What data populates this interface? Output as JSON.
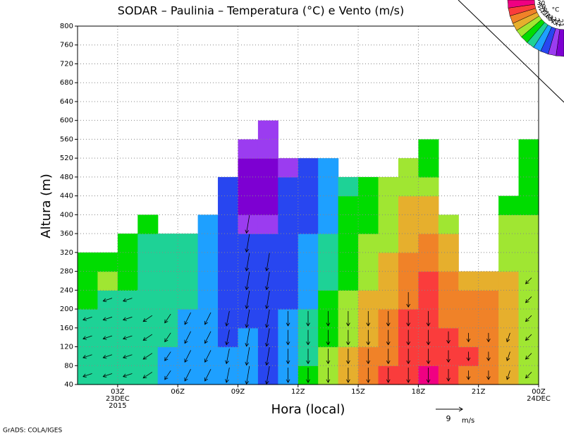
{
  "chart_data": {
    "type": "heatmap",
    "title": "SODAR – Paulinia – Temperatura (°C) e Vento (m/s)",
    "xlabel": "Hora (local)",
    "ylabel": "Altura (m)",
    "xlim": [
      1,
      24
    ],
    "ylim": [
      40,
      800
    ],
    "xticks": [
      {
        "value": 3,
        "label": "03Z 23DEC 2015"
      },
      {
        "value": 6,
        "label": "06Z"
      },
      {
        "value": 9,
        "label": "09Z"
      },
      {
        "value": 12,
        "label": "12Z"
      },
      {
        "value": 15,
        "label": "15Z"
      },
      {
        "value": 18,
        "label": "18Z"
      },
      {
        "value": 21,
        "label": "21Z"
      },
      {
        "value": 24,
        "label": "00Z 24DEC"
      }
    ],
    "yticks": [
      40,
      80,
      120,
      160,
      200,
      240,
      280,
      320,
      360,
      400,
      440,
      480,
      520,
      560,
      600,
      640,
      680,
      720,
      760,
      800
    ],
    "grid": true,
    "x": [
      1,
      2,
      3,
      4,
      5,
      6,
      7,
      8,
      9,
      10,
      11,
      12,
      13,
      14,
      15,
      16,
      17,
      18,
      19,
      20,
      21,
      22,
      23,
      24
    ],
    "y": [
      40,
      80,
      120,
      160,
      200,
      240,
      280,
      320,
      360,
      400,
      440,
      480,
      520,
      560,
      600
    ],
    "z": [
      [
        24.5,
        24.5,
        24.5,
        24.5,
        25.5,
        25.5,
        25.5,
        null,
        null,
        null,
        null,
        null,
        null,
        null
      ],
      [
        24.5,
        24.5,
        24.5,
        24.5,
        24.5,
        26.5,
        25.5,
        null,
        null,
        null,
        null,
        null,
        null,
        null
      ],
      [
        24.5,
        24.5,
        24.5,
        24.5,
        24.5,
        25.5,
        25.5,
        25.5,
        null,
        null,
        null,
        null,
        null,
        null
      ],
      [
        24.5,
        24.5,
        24.5,
        24.5,
        24.5,
        24.5,
        24.5,
        24.5,
        25.5,
        null,
        null,
        null,
        null,
        null
      ],
      [
        23.5,
        23.5,
        24.5,
        24.5,
        24.5,
        24.5,
        24.5,
        24.5,
        null,
        null,
        null,
        null,
        null,
        null
      ],
      [
        23.5,
        23.5,
        23.5,
        23.5,
        24.5,
        24.5,
        24.5,
        24.5,
        null,
        null,
        null,
        null,
        null,
        null
      ],
      [
        23.5,
        23.5,
        23.5,
        23.5,
        23.5,
        23.5,
        23.5,
        23.5,
        23.5,
        null,
        null,
        null,
        null,
        null
      ],
      [
        23.5,
        23.5,
        22.5,
        22.5,
        22.5,
        22.5,
        22.5,
        22.5,
        22.5,
        22.5,
        22.5,
        null,
        null,
        null
      ],
      [
        23.5,
        23.5,
        23.5,
        22.5,
        22.5,
        22.5,
        22.5,
        22.5,
        21.5,
        20.5,
        20.5,
        20.5,
        21.5,
        null
      ],
      [
        22.5,
        22.5,
        22.5,
        22.5,
        22.5,
        22.5,
        22.5,
        22.5,
        21.5,
        20.5,
        20.5,
        20.5,
        21.5,
        21.5
      ],
      [
        23.5,
        23.5,
        23.5,
        23.5,
        22.5,
        22.5,
        22.5,
        22.5,
        22.5,
        22.5,
        22.5,
        21.5,
        null,
        null
      ],
      [
        25.5,
        24.5,
        24.5,
        24.5,
        23.5,
        23.5,
        23.5,
        23.5,
        22.5,
        22.5,
        22.5,
        22.5,
        null,
        null
      ],
      [
        26.5,
        26.5,
        25.5,
        25.5,
        25.5,
        24.5,
        24.5,
        24.5,
        23.5,
        23.5,
        23.5,
        23.5,
        null,
        null
      ],
      [
        27.5,
        27.5,
        26.5,
        26.5,
        26.5,
        25.5,
        25.5,
        25.5,
        25.5,
        25.5,
        24.5,
        null,
        null,
        null
      ],
      [
        28.5,
        28.5,
        27.5,
        27.5,
        27.5,
        26.5,
        26.5,
        26.5,
        25.5,
        25.5,
        25.5,
        null,
        null,
        null
      ],
      [
        29.5,
        28.5,
        28.5,
        28.5,
        27.5,
        27.5,
        27.5,
        26.5,
        26.5,
        26.5,
        26.5,
        null,
        null,
        null
      ],
      [
        29.5,
        29.5,
        29.5,
        29.5,
        28.5,
        28.5,
        28.5,
        27.5,
        27.5,
        27.5,
        26.5,
        26.5,
        null,
        null
      ],
      [
        30.5,
        29.5,
        29.5,
        29.5,
        29.5,
        29.5,
        28.5,
        28.5,
        27.5,
        27.5,
        26.5,
        25.5,
        25.5,
        null
      ],
      [
        29.5,
        29.5,
        29.5,
        28.5,
        28.5,
        28.5,
        27.5,
        27.5,
        26.5,
        null,
        null,
        null,
        null,
        null
      ],
      [
        28.5,
        29.5,
        28.5,
        28.5,
        28.5,
        27.5,
        null,
        null,
        null,
        null,
        null,
        null,
        null,
        null
      ],
      [
        28.5,
        28.5,
        28.5,
        28.5,
        28.5,
        27.5,
        null,
        null,
        null,
        null,
        null,
        null,
        null,
        null
      ],
      [
        27.5,
        27.5,
        27.5,
        27.5,
        27.5,
        27.5,
        26.5,
        26.5,
        26.5,
        25.5,
        null,
        null,
        null,
        null
      ],
      [
        26.5,
        26.5,
        26.5,
        26.5,
        26.5,
        26.5,
        26.5,
        26.5,
        26.5,
        25.5,
        25.5,
        25.5,
        25.5,
        null
      ]
    ],
    "levels": [
      21,
      22,
      23,
      24,
      25,
      26,
      27,
      28,
      29,
      30
    ],
    "colors": [
      "#7d00d2",
      "#9b3cf0",
      "#2846f0",
      "#1ea0ff",
      "#1ed296",
      "#00dc00",
      "#a0e632",
      "#e6af2d",
      "#f08228",
      "#fa3c3c",
      "#f00082"
    ],
    "colorbar_unit": "°C",
    "wind": {
      "x": [
        1.5,
        2.5,
        3.5,
        4.5,
        5.5,
        6.5,
        7.5,
        8.5,
        9.5,
        10.5,
        11.5,
        12.5,
        13.5,
        14.5,
        15.5,
        16.5,
        17.5,
        18.5,
        19.5,
        20.5,
        21.5,
        22.5,
        23.5
      ],
      "u": [
        -3,
        -3,
        -3,
        -3,
        -2,
        -2,
        -2,
        -1,
        -1,
        -1,
        0,
        0,
        0,
        0,
        0,
        0,
        0,
        0,
        0,
        0,
        0,
        -1,
        -2
      ],
      "v": [
        -1,
        -1,
        -1,
        -2,
        -3,
        -4,
        -4,
        -5,
        -6,
        -6,
        -5,
        -5,
        -5,
        -5,
        -5,
        -5,
        -5,
        -5,
        -4,
        -3,
        -3,
        -3,
        -2
      ],
      "ytop": [
        200,
        220,
        220,
        200,
        200,
        200,
        200,
        200,
        380,
        300,
        180,
        200,
        200,
        200,
        200,
        200,
        220,
        200,
        160,
        160,
        160,
        160,
        260
      ]
    },
    "wind_key": 9,
    "wind_unit": "m/s",
    "footer": "GrADS: COLA/IGES"
  }
}
